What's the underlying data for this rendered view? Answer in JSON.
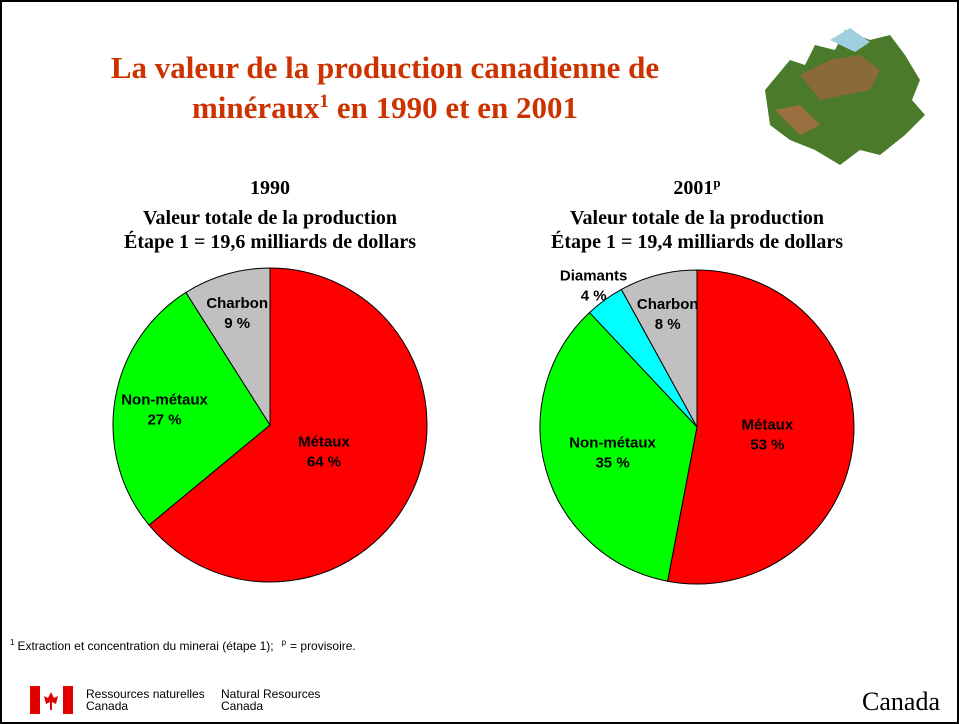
{
  "title": {
    "lines": [
      "La valeur de la production canadienne de",
      "minéraux"
    ],
    "sup": "1",
    "rest": "en 1990 et en 2001"
  },
  "chart_data": [
    {
      "type": "pie",
      "title": "1990",
      "subtitle": [
        "Valeur totale de la production",
        "Étape 1 = 19,6 milliards de dollars"
      ],
      "categories": [
        "Métaux",
        "Non-métaux",
        "Charbon"
      ],
      "values": [
        64,
        27,
        9
      ],
      "value_labels": [
        "64 %",
        "27 %",
        "9 %"
      ],
      "colors": [
        "#ff0000",
        "#00ff00",
        "#c0c0c0"
      ]
    },
    {
      "type": "pie",
      "title": "2001",
      "title_sup": "p",
      "subtitle": [
        "Valeur totale de la production",
        "Étape 1 = 19,4 milliards de dollars"
      ],
      "categories": [
        "Métaux",
        "Non-métaux",
        "Diamants",
        "Charbon"
      ],
      "values": [
        53,
        35,
        4,
        8
      ],
      "value_labels": [
        "53 %",
        "35 %",
        "4 %",
        "8 %"
      ],
      "colors": [
        "#ff0000",
        "#00ff00",
        "#00ffff",
        "#c0c0c0"
      ]
    }
  ],
  "footnote": {
    "sup1": "1",
    "text1": "Extraction et concentration du minerai (étape 1);",
    "sup2": "p",
    "text2": "= provisoire."
  },
  "footer": {
    "fr": [
      "Ressources naturelles",
      "Canada"
    ],
    "en": [
      "Natural Resources",
      "Canada"
    ],
    "wordmark": "Canada"
  }
}
